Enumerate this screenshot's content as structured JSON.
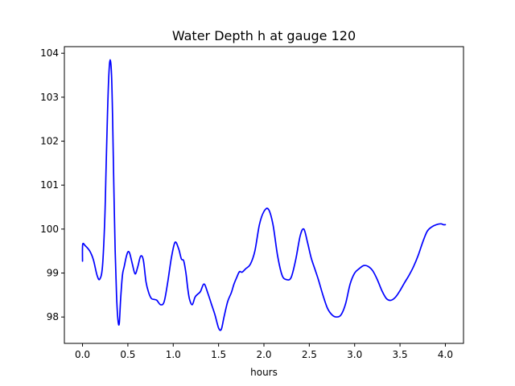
{
  "chart_data": {
    "type": "line",
    "title": "Water Depth h at gauge 120",
    "xlabel": "hours",
    "ylabel": "",
    "xlim": [
      -0.2,
      4.2
    ],
    "ylim": [
      97.4,
      104.15
    ],
    "xticks": [
      0.0,
      0.5,
      1.0,
      1.5,
      2.0,
      2.5,
      3.0,
      3.5,
      4.0
    ],
    "xtick_labels": [
      "0.0",
      "0.5",
      "1.0",
      "1.5",
      "2.0",
      "2.5",
      "3.0",
      "3.5",
      "4.0"
    ],
    "yticks": [
      98,
      99,
      100,
      101,
      102,
      103,
      104
    ],
    "ytick_labels": [
      "98",
      "99",
      "100",
      "101",
      "102",
      "103",
      "104"
    ],
    "grid": false,
    "series": [
      {
        "color": "#0000ff",
        "x": [
          0.0,
          0.002,
          0.03,
          0.08,
          0.12,
          0.16,
          0.19,
          0.22,
          0.245,
          0.26,
          0.275,
          0.29,
          0.305,
          0.32,
          0.332,
          0.345,
          0.36,
          0.375,
          0.39,
          0.405,
          0.42,
          0.44,
          0.46,
          0.48,
          0.5,
          0.52,
          0.55,
          0.58,
          0.61,
          0.64,
          0.67,
          0.7,
          0.73,
          0.76,
          0.79,
          0.82,
          0.86,
          0.9,
          0.94,
          0.98,
          1.02,
          1.06,
          1.09,
          1.115,
          1.14,
          1.16,
          1.18,
          1.21,
          1.24,
          1.27,
          1.3,
          1.34,
          1.38,
          1.42,
          1.46,
          1.5,
          1.53,
          1.56,
          1.6,
          1.64,
          1.67,
          1.7,
          1.73,
          1.76,
          1.8,
          1.85,
          1.9,
          1.95,
          2.0,
          2.05,
          2.1,
          2.15,
          2.2,
          2.25,
          2.3,
          2.35,
          2.4,
          2.44,
          2.48,
          2.52,
          2.56,
          2.6,
          2.65,
          2.7,
          2.75,
          2.8,
          2.85,
          2.9,
          2.95,
          3.0,
          3.05,
          3.1,
          3.15,
          3.2,
          3.25,
          3.3,
          3.35,
          3.4,
          3.45,
          3.5,
          3.55,
          3.6,
          3.65,
          3.7,
          3.75,
          3.8,
          3.85,
          3.9,
          3.95,
          3.98,
          4.0
        ],
        "y": [
          99.27,
          99.65,
          99.62,
          99.5,
          99.3,
          98.95,
          98.86,
          99.15,
          100.2,
          101.4,
          102.6,
          103.5,
          103.85,
          103.5,
          102.5,
          101.0,
          99.5,
          98.5,
          97.95,
          97.85,
          98.4,
          98.95,
          99.15,
          99.35,
          99.48,
          99.45,
          99.2,
          98.98,
          99.15,
          99.38,
          99.3,
          98.8,
          98.55,
          98.42,
          98.4,
          98.38,
          98.28,
          98.35,
          98.8,
          99.35,
          99.7,
          99.55,
          99.32,
          99.28,
          99.0,
          98.65,
          98.4,
          98.28,
          98.45,
          98.52,
          98.58,
          98.75,
          98.55,
          98.3,
          98.05,
          97.75,
          97.72,
          98.0,
          98.35,
          98.55,
          98.75,
          98.9,
          99.03,
          99.02,
          99.1,
          99.2,
          99.5,
          100.1,
          100.4,
          100.45,
          100.1,
          99.4,
          98.95,
          98.85,
          98.9,
          99.3,
          99.85,
          100.0,
          99.7,
          99.35,
          99.1,
          98.85,
          98.5,
          98.2,
          98.05,
          98.0,
          98.05,
          98.3,
          98.75,
          99.0,
          99.1,
          99.17,
          99.15,
          99.05,
          98.85,
          98.6,
          98.42,
          98.38,
          98.45,
          98.6,
          98.78,
          98.95,
          99.15,
          99.4,
          99.7,
          99.95,
          100.05,
          100.1,
          100.12,
          100.1,
          100.1
        ]
      }
    ]
  }
}
